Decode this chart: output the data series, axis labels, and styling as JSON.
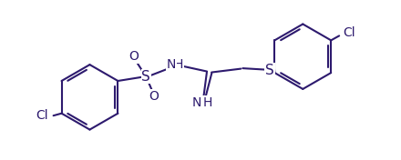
{
  "bg_color": "#ffffff",
  "line_color": "#2d1a6e",
  "text_color": "#2d1a6e",
  "line_width": 1.5,
  "font_size": 10,
  "figsize": [
    4.4,
    1.76
  ],
  "dpi": 100,
  "xlim": [
    0.0,
    8.8
  ],
  "ylim": [
    0.0,
    3.52
  ]
}
